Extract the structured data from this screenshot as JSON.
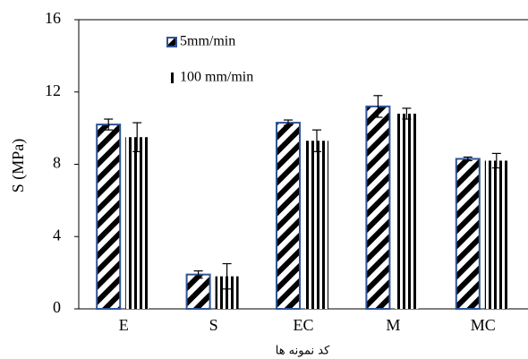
{
  "chart_data": {
    "type": "bar",
    "x_label": "کد نمونه ها",
    "y_label": "S (MPa)",
    "categories": [
      "E",
      "S",
      "EC",
      "M",
      "MC"
    ],
    "series": [
      {
        "name": "5mm/min",
        "color": "#2f5597",
        "pattern": "diagonal",
        "values": [
          10.2,
          1.9,
          10.3,
          11.2,
          8.3
        ],
        "errors": [
          0.3,
          0.2,
          0.15,
          0.6,
          0.1
        ]
      },
      {
        "name": "100 mm/min",
        "color": "#000000",
        "pattern": "vertical",
        "values": [
          9.5,
          1.8,
          9.3,
          10.8,
          8.2
        ],
        "errors": [
          0.8,
          0.7,
          0.6,
          0.3,
          0.4
        ]
      }
    ],
    "ylim": [
      0,
      16
    ],
    "yticks": [
      0,
      4,
      8,
      12,
      16
    ],
    "grid": false
  }
}
